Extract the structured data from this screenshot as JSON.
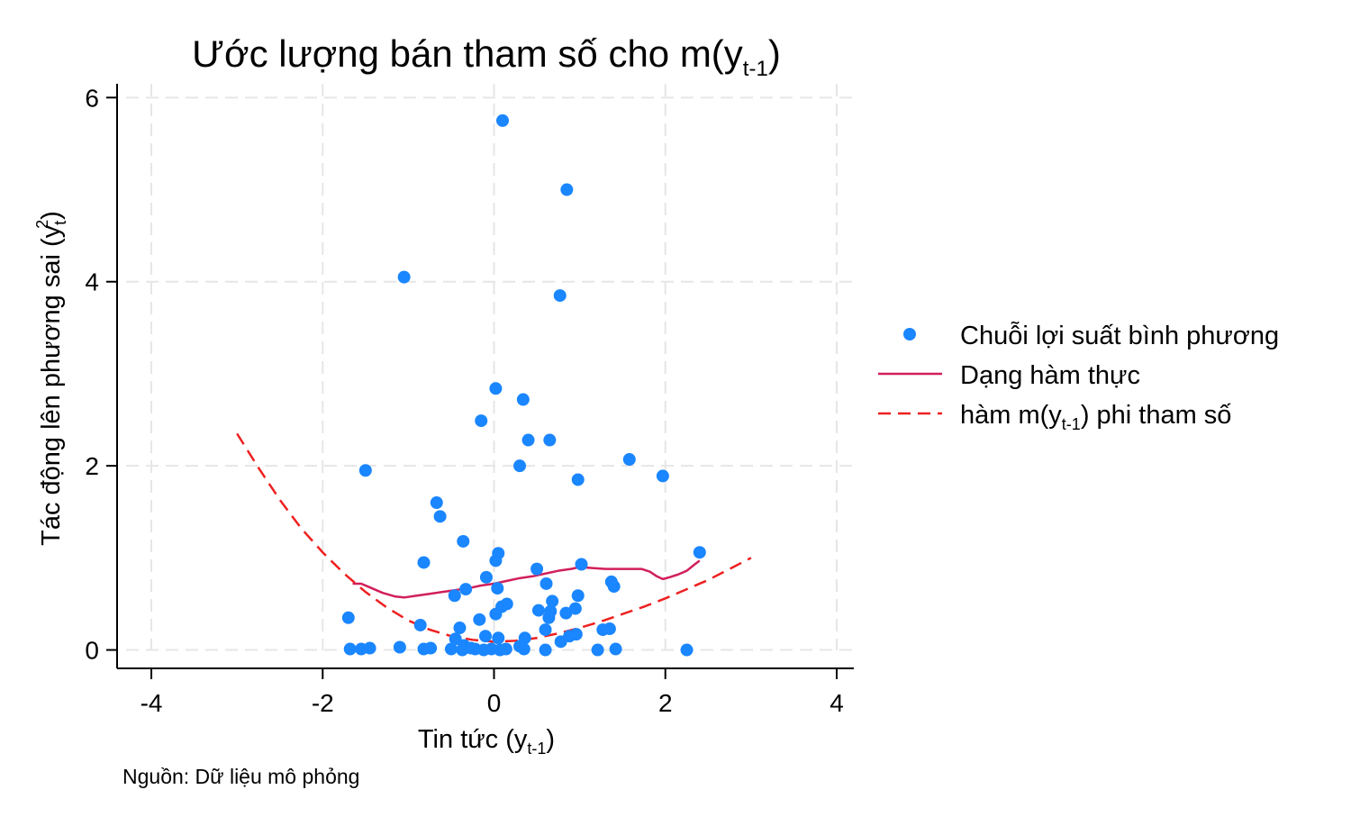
{
  "chart_data": {
    "type": "scatter",
    "title": {
      "main": "Ước lượng bán tham số cho m(y",
      "sub": "t-1",
      "end": ")"
    },
    "xlabel": {
      "main": "Tin tức (y",
      "sub": "t-1",
      "end": ")"
    },
    "ylabel": {
      "main": "Tác động lên phương sai (y",
      "sub": "t",
      "sup": "2",
      "end": ")"
    },
    "note": "Nguồn: Dữ liệu mô phỏng",
    "xlim": [
      -4.4,
      4.2
    ],
    "ylim": [
      -0.2,
      6.15
    ],
    "x_ticks": [
      -4,
      -2,
      0,
      2,
      4
    ],
    "x_tick_labels": [
      "-4",
      "-2",
      "0",
      "2",
      "4"
    ],
    "y_ticks": [
      0,
      2,
      4,
      6
    ],
    "y_tick_labels": [
      "0",
      "2",
      "4",
      "6"
    ],
    "grid": true,
    "legend_position": "right",
    "colors": {
      "points": "#1a86ff",
      "true_line": "#d11f5a",
      "np_line": "#ee2020"
    },
    "series": [
      {
        "name": "Chuỗi lợi suất bình phương",
        "kind": "scatter",
        "points": [
          [
            0.1,
            5.75
          ],
          [
            0.85,
            5.0
          ],
          [
            -1.05,
            4.05
          ],
          [
            0.77,
            3.85
          ],
          [
            0.02,
            2.84
          ],
          [
            0.34,
            2.72
          ],
          [
            -0.15,
            2.49
          ],
          [
            0.4,
            2.28
          ],
          [
            0.65,
            2.28
          ],
          [
            1.58,
            2.07
          ],
          [
            1.97,
            1.89
          ],
          [
            0.3,
            2.0
          ],
          [
            -1.5,
            1.95
          ],
          [
            0.98,
            1.85
          ],
          [
            -0.67,
            1.6
          ],
          [
            -0.63,
            1.45
          ],
          [
            -0.36,
            1.18
          ],
          [
            0.05,
            1.05
          ],
          [
            2.4,
            1.06
          ],
          [
            0.02,
            0.97
          ],
          [
            -0.82,
            0.95
          ],
          [
            1.02,
            0.93
          ],
          [
            0.5,
            0.88
          ],
          [
            -0.09,
            0.79
          ],
          [
            1.37,
            0.74
          ],
          [
            1.4,
            0.69
          ],
          [
            0.61,
            0.72
          ],
          [
            0.04,
            0.67
          ],
          [
            -0.33,
            0.66
          ],
          [
            -0.46,
            0.59
          ],
          [
            0.98,
            0.59
          ],
          [
            0.68,
            0.53
          ],
          [
            0.15,
            0.5
          ],
          [
            0.09,
            0.47
          ],
          [
            0.95,
            0.45
          ],
          [
            0.52,
            0.43
          ],
          [
            0.66,
            0.42
          ],
          [
            0.84,
            0.4
          ],
          [
            0.02,
            0.39
          ],
          [
            -0.17,
            0.33
          ],
          [
            0.64,
            0.35
          ],
          [
            -1.7,
            0.35
          ],
          [
            -0.86,
            0.27
          ],
          [
            -0.4,
            0.24
          ],
          [
            0.6,
            0.22
          ],
          [
            1.27,
            0.22
          ],
          [
            1.35,
            0.23
          ],
          [
            0.96,
            0.17
          ],
          [
            0.05,
            0.13
          ],
          [
            0.36,
            0.13
          ],
          [
            0.88,
            0.15
          ],
          [
            -0.1,
            0.15
          ],
          [
            -0.45,
            0.12
          ],
          [
            0.78,
            0.09
          ],
          [
            -0.35,
            0.05
          ],
          [
            0.3,
            0.04
          ],
          [
            -1.68,
            0.01
          ],
          [
            -1.55,
            0.01
          ],
          [
            -1.45,
            0.02
          ],
          [
            -1.1,
            0.03
          ],
          [
            -0.82,
            0.01
          ],
          [
            -0.74,
            0.02
          ],
          [
            -0.5,
            0.01
          ],
          [
            -0.37,
            0.0
          ],
          [
            -0.27,
            0.02
          ],
          [
            -0.22,
            0.01
          ],
          [
            -0.12,
            0.0
          ],
          [
            -0.03,
            0.01
          ],
          [
            0.07,
            0.0
          ],
          [
            0.14,
            0.01
          ],
          [
            0.35,
            0.01
          ],
          [
            0.6,
            0.0
          ],
          [
            1.21,
            0.0
          ],
          [
            1.42,
            0.01
          ],
          [
            2.25,
            0.0
          ]
        ]
      },
      {
        "name": "Dạng hàm thực",
        "kind": "line",
        "points": [
          [
            -1.65,
            0.72
          ],
          [
            -1.55,
            0.72
          ],
          [
            -1.45,
            0.68
          ],
          [
            -1.3,
            0.62
          ],
          [
            -1.15,
            0.58
          ],
          [
            -1.05,
            0.57
          ],
          [
            -0.9,
            0.59
          ],
          [
            -0.75,
            0.61
          ],
          [
            -0.6,
            0.63
          ],
          [
            -0.45,
            0.65
          ],
          [
            -0.3,
            0.67
          ],
          [
            -0.15,
            0.7
          ],
          [
            0.0,
            0.72
          ],
          [
            0.15,
            0.75
          ],
          [
            0.3,
            0.78
          ],
          [
            0.45,
            0.8
          ],
          [
            0.6,
            0.83
          ],
          [
            0.75,
            0.86
          ],
          [
            0.9,
            0.88
          ],
          [
            1.0,
            0.9
          ],
          [
            1.15,
            0.89
          ],
          [
            1.3,
            0.88
          ],
          [
            1.45,
            0.88
          ],
          [
            1.6,
            0.88
          ],
          [
            1.72,
            0.88
          ],
          [
            1.82,
            0.85
          ],
          [
            1.9,
            0.8
          ],
          [
            1.97,
            0.77
          ],
          [
            2.05,
            0.79
          ],
          [
            2.15,
            0.82
          ],
          [
            2.25,
            0.86
          ],
          [
            2.33,
            0.92
          ],
          [
            2.4,
            0.97
          ]
        ]
      },
      {
        "name": "hàm m(yt-1) phi tham số",
        "label": {
          "main": "hàm m(y",
          "sub": "t-1",
          "end": ") phi tham số"
        },
        "kind": "line-dashed",
        "points": [
          [
            -3.0,
            2.35
          ],
          [
            -2.75,
            1.98
          ],
          [
            -2.5,
            1.63
          ],
          [
            -2.25,
            1.32
          ],
          [
            -2.0,
            1.06
          ],
          [
            -1.75,
            0.83
          ],
          [
            -1.5,
            0.63
          ],
          [
            -1.25,
            0.46
          ],
          [
            -1.0,
            0.32
          ],
          [
            -0.75,
            0.22
          ],
          [
            -0.5,
            0.15
          ],
          [
            -0.25,
            0.11
          ],
          [
            0.0,
            0.09
          ],
          [
            0.25,
            0.1
          ],
          [
            0.5,
            0.13
          ],
          [
            0.75,
            0.18
          ],
          [
            1.0,
            0.24
          ],
          [
            1.25,
            0.31
          ],
          [
            1.5,
            0.39
          ],
          [
            1.75,
            0.47
          ],
          [
            2.0,
            0.56
          ],
          [
            2.25,
            0.66
          ],
          [
            2.5,
            0.76
          ],
          [
            2.75,
            0.88
          ],
          [
            3.0,
            1.0
          ]
        ]
      }
    ]
  }
}
